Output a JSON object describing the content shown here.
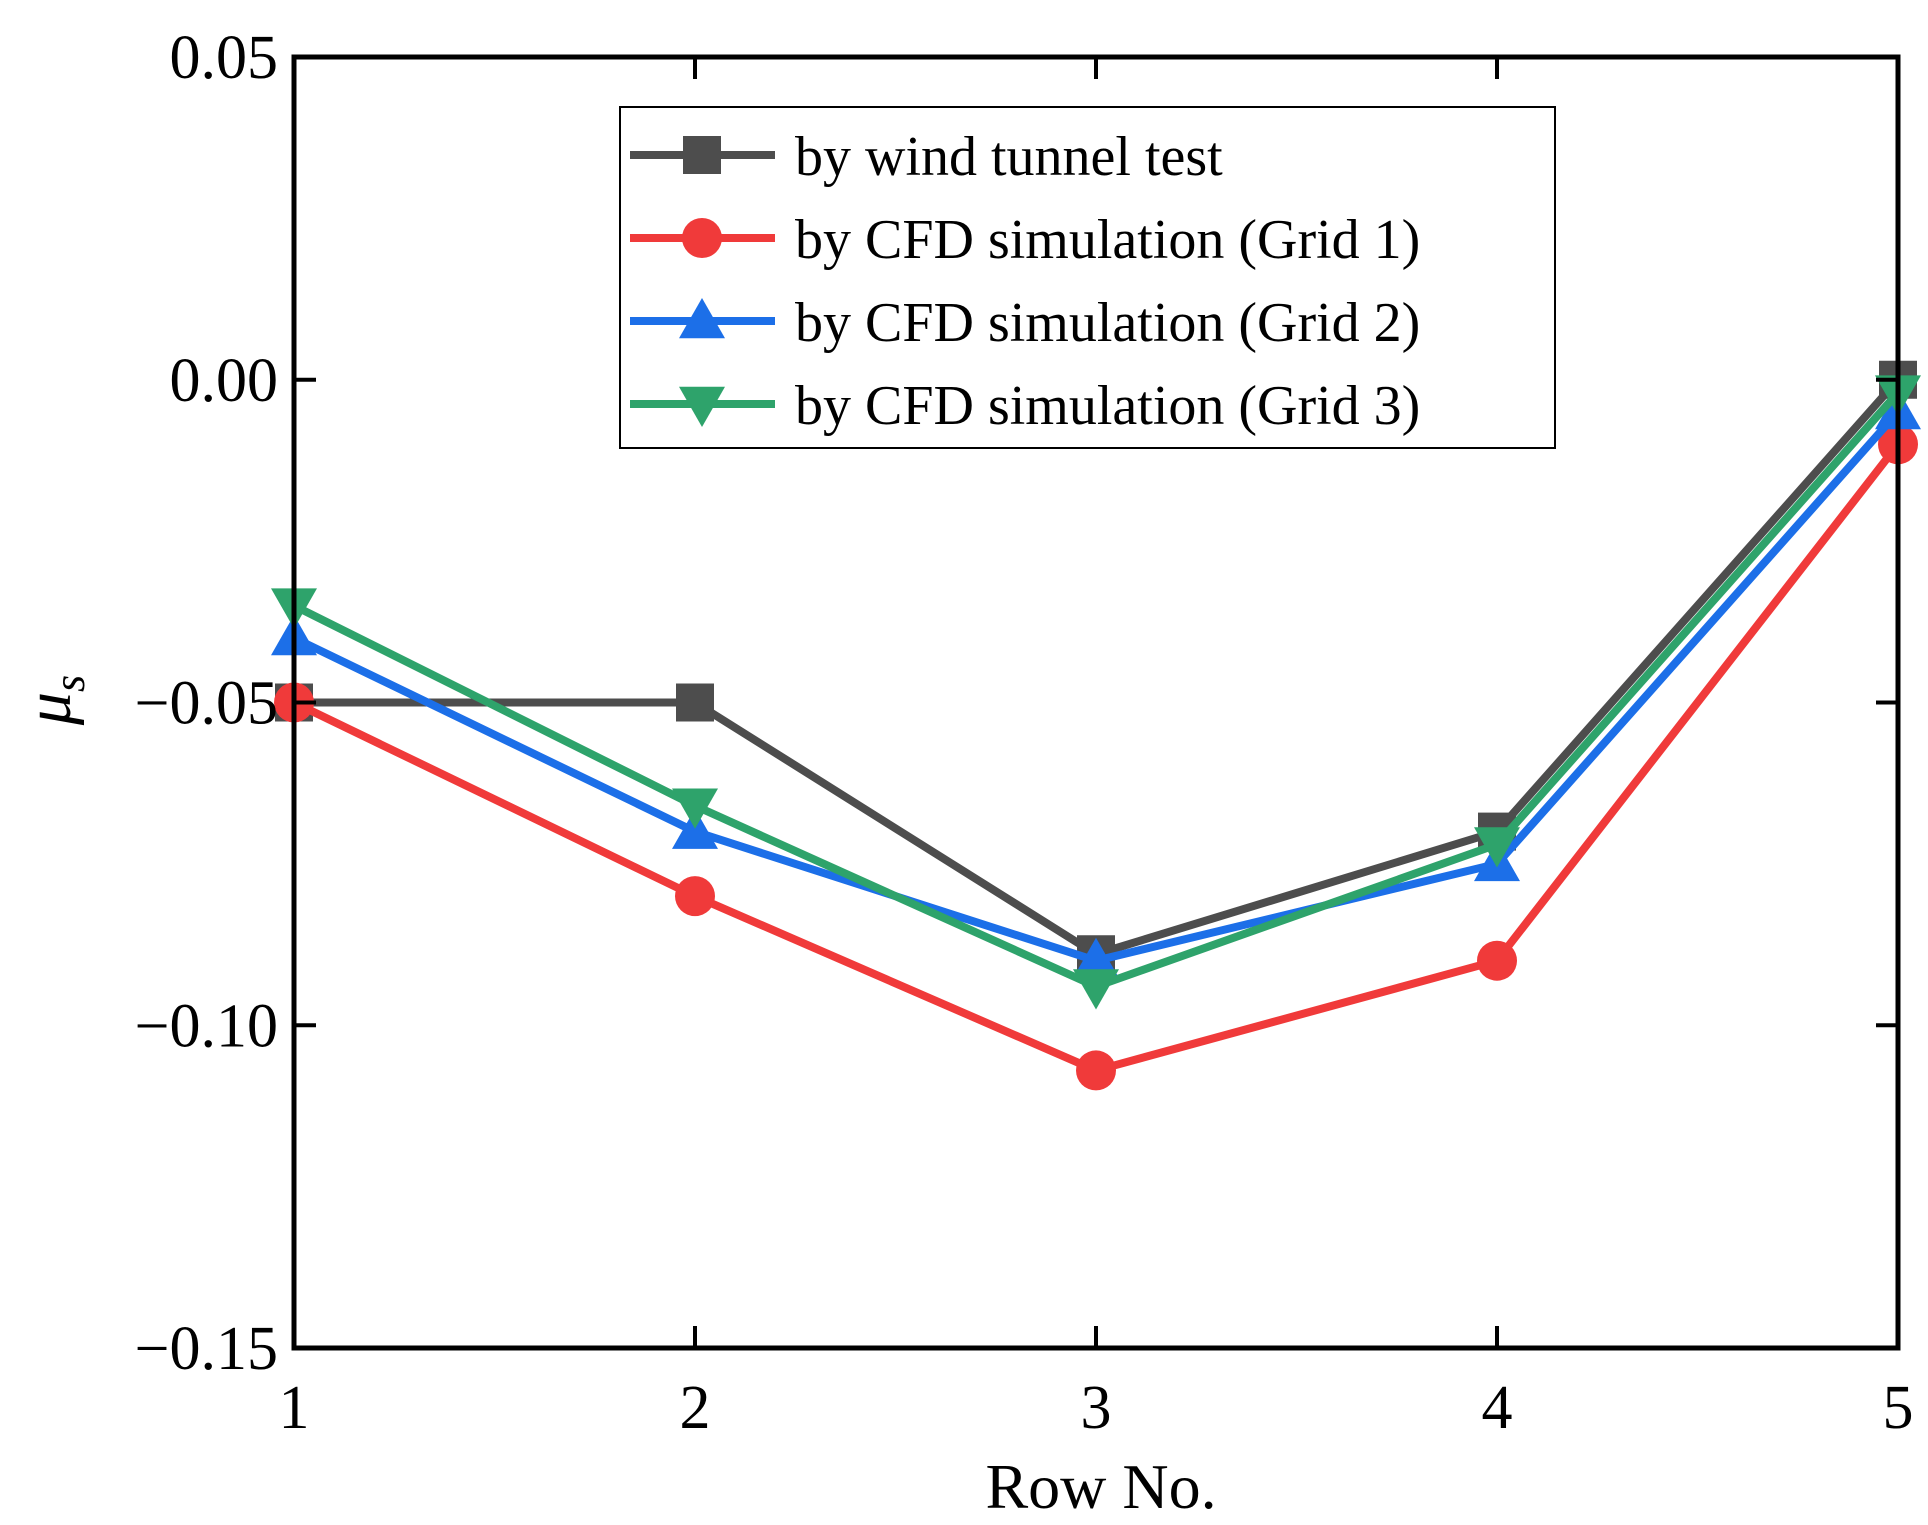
{
  "chart_data": {
    "type": "line",
    "title": "",
    "xlabel": "Row No.",
    "ylabel": "μs",
    "ylabel_main": "μ",
    "ylabel_sub": "s",
    "xlim": [
      1,
      5
    ],
    "ylim": [
      -0.15,
      0.05
    ],
    "xticks": [
      1,
      2,
      3,
      4,
      5
    ],
    "xtick_labels": [
      "1",
      "2",
      "3",
      "4",
      "5"
    ],
    "yticks": [
      -0.15,
      -0.1,
      -0.05,
      0.0,
      0.05
    ],
    "ytick_labels": [
      "−0.15",
      "−0.10",
      "−0.05",
      "0.00",
      "0.05"
    ],
    "grid": false,
    "legend_position": "top-center",
    "x": [
      1,
      2,
      3,
      4,
      5
    ],
    "series": [
      {
        "name": "by wind tunnel test",
        "marker": "square",
        "color": "#4d4d4d",
        "values": [
          -0.05,
          -0.05,
          -0.089,
          -0.07,
          0.0
        ]
      },
      {
        "name": "by CFD simulation (Grid 1)",
        "marker": "circle",
        "color": "#f03a3a",
        "values": [
          -0.05,
          -0.08,
          -0.107,
          -0.09,
          -0.01
        ]
      },
      {
        "name": "by CFD simulation (Grid 2)",
        "marker": "triangle-up",
        "color": "#1c6fe8",
        "values": [
          -0.04,
          -0.07,
          -0.09,
          -0.075,
          -0.005
        ]
      },
      {
        "name": "by CFD simulation (Grid 3)",
        "marker": "triangle-down",
        "color": "#2ea36b",
        "values": [
          -0.035,
          -0.066,
          -0.094,
          -0.072,
          -0.002
        ]
      }
    ]
  }
}
